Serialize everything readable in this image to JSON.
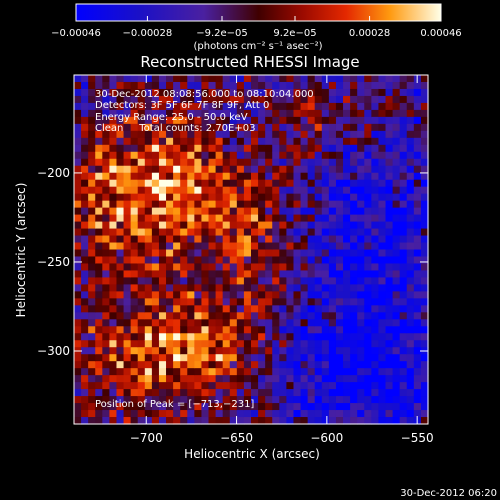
{
  "chart_data": {
    "type": "heatmap",
    "title": "Reconstructed RHESSI Image",
    "xlabel": "Heliocentric X (arcsec)",
    "ylabel": "Heliocentric Y (arcsec)",
    "xlim": [
      -740,
      -544
    ],
    "ylim": [
      -341,
      -145
    ],
    "x_ticks": [
      -700,
      -650,
      -600,
      -550
    ],
    "x_tick_labels": [
      "−700",
      "−650",
      "−600",
      "−550"
    ],
    "y_ticks": [
      -200,
      -250,
      -300
    ],
    "y_tick_labels": [
      "−200",
      "−250",
      "−300"
    ],
    "colorbar": {
      "min": -0.00046,
      "max": 0.00046,
      "ticks": [
        -0.00046,
        -0.00028,
        -9.2e-05,
        9.2e-05,
        0.00028,
        0.00046
      ],
      "tick_labels": [
        "−0.00046",
        "−0.00028",
        "−9.2e−05",
        "9.2e−05",
        "0.00028",
        "0.00046"
      ],
      "units": "(photons cm⁻² s⁻¹ asec⁻²)"
    },
    "peak": [
      -713,
      -231
    ],
    "info_lines": [
      "30-Dec-2012 08:08:56.000 to 08:10:04.000",
      "Detectors: 3F 5F 6F 7F 8F 9F, Att 0",
      "Energy Range: 25.0 - 50.0 keV",
      "Clean     Total counts: 2.70E+03"
    ],
    "peak_label": "Position of Peak = [−713,−231]",
    "footer_timestamp": "30-Dec-2012 06:20"
  }
}
